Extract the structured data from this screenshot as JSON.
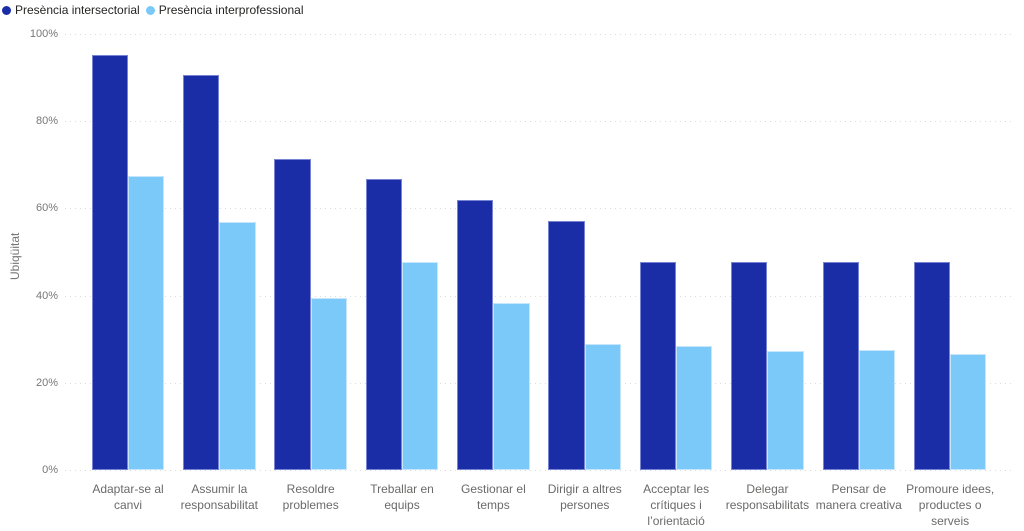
{
  "legend": {
    "items": [
      {
        "label": "Presència intersectorial",
        "color": "#1b2da6"
      },
      {
        "label": "Presència interprofessional",
        "color": "#7bc9f9"
      }
    ]
  },
  "chart_data": {
    "type": "bar",
    "title": "",
    "xlabel": "",
    "ylabel": "Ubiqüitat",
    "ylim": [
      0,
      100
    ],
    "yticks": [
      "0%",
      "20%",
      "40%",
      "60%",
      "80%",
      "100%"
    ],
    "grid": "horizontal-dotted",
    "legend_position": "top-left",
    "categories": [
      "Adaptar-se al canvi",
      "Assumir la responsabilitat",
      "Resoldre problemes",
      "Treballar en equips",
      "Gestionar el temps",
      "Dirigir a altres persones",
      "Acceptar les crítiques i l’orientació",
      "Delegar responsabilitats",
      "Pensar de manera creativa",
      "Promoure idees, productes o serveis"
    ],
    "series": [
      {
        "name": "Presència intersectorial",
        "color": "#1b2da6",
        "values": [
          95.2,
          90.5,
          71.4,
          66.7,
          61.9,
          57.1,
          47.6,
          47.6,
          47.6,
          47.6
        ]
      },
      {
        "name": "Presència interprofessional",
        "color": "#7bc9f9",
        "values": [
          67.5,
          56.8,
          39.4,
          47.6,
          38.3,
          29.0,
          28.5,
          27.3,
          27.6,
          26.5
        ]
      }
    ]
  }
}
